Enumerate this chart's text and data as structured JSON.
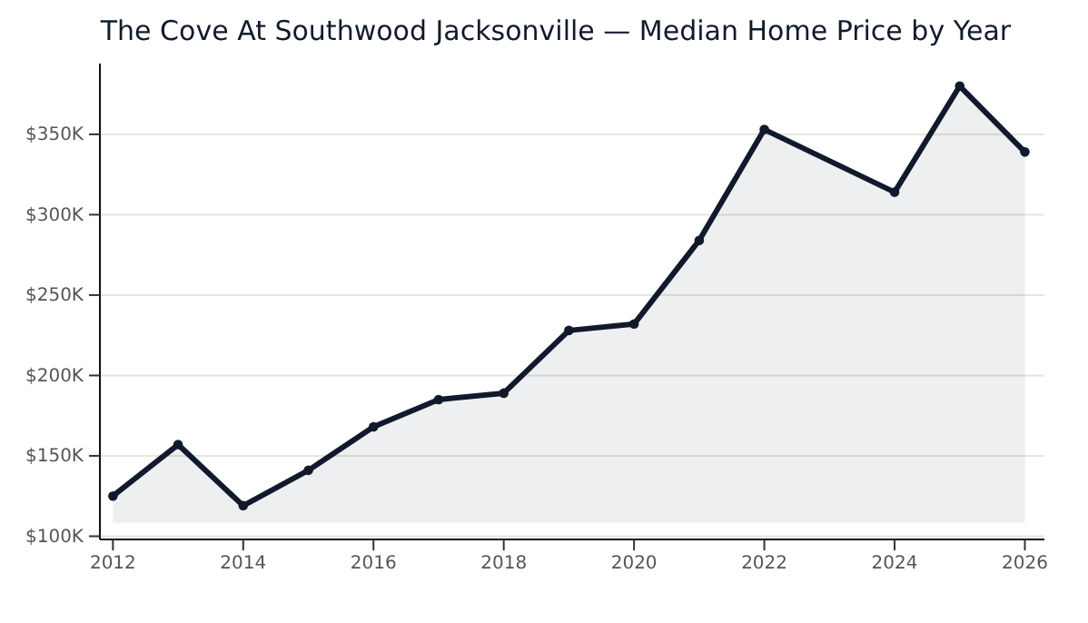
{
  "chart_data": {
    "type": "area",
    "title": "The Cove At Southwood Jacksonville — Median Home Price by Year",
    "x": [
      2012,
      2013,
      2014,
      2015,
      2016,
      2017,
      2018,
      2019,
      2020,
      2021,
      2022,
      2024,
      2025,
      2026
    ],
    "series": [
      {
        "color": "#111a2c",
        "values": [
          125000,
          157000,
          119000,
          141000,
          168000,
          185000,
          189000,
          228000,
          232000,
          284000,
          353000,
          314000,
          380000,
          339000
        ]
      }
    ],
    "xlim": [
      2011.8,
      2026.3
    ],
    "xticks": [
      2012,
      2014,
      2016,
      2018,
      2020,
      2022,
      2024,
      2026
    ],
    "ylim": [
      98000,
      394000
    ],
    "yticks": [
      {
        "value": 100000,
        "label": "$100K"
      },
      {
        "value": 150000,
        "label": "$150K"
      },
      {
        "value": 200000,
        "label": "$200K"
      },
      {
        "value": 250000,
        "label": "$250K"
      },
      {
        "value": 300000,
        "label": "$300K"
      },
      {
        "value": 350000,
        "label": "$350K"
      }
    ],
    "grid": "y",
    "marker": "circle",
    "line_style": "solid"
  }
}
